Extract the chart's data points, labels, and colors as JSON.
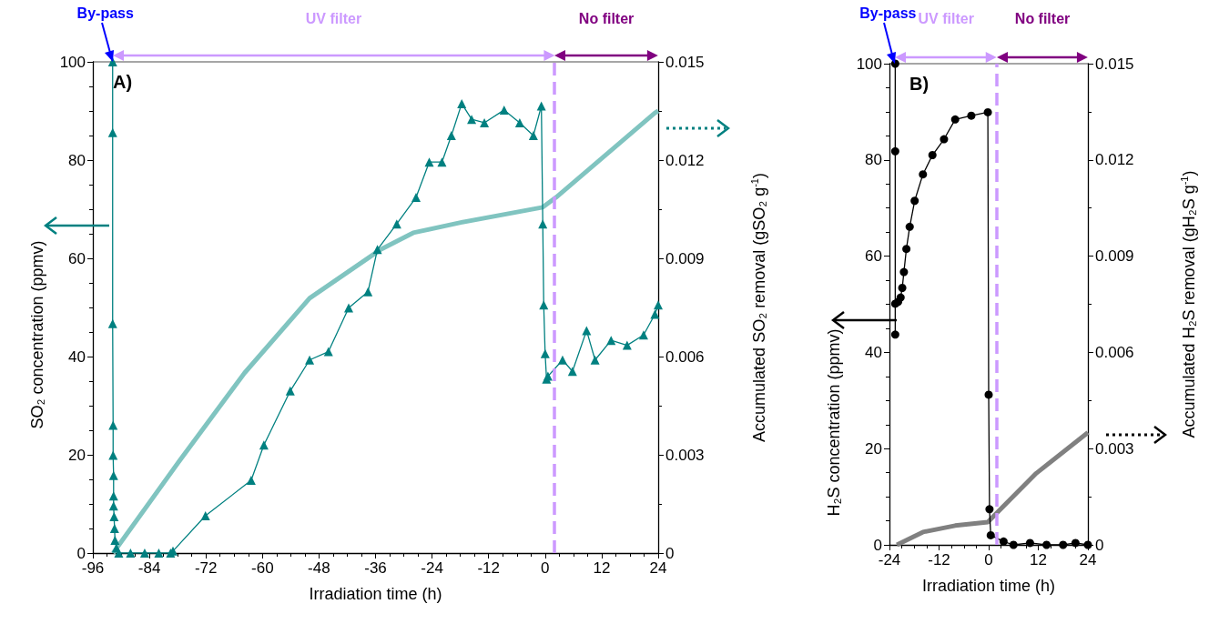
{
  "chart_data": [
    {
      "type": "line",
      "xlabel": "Irradiation time (h)",
      "ylabel": "SO₂ concentration (ppmv)",
      "y2label": "Accumulated SO₂ removal (gSO₂ g$^{-1}$)",
      "xlim": [
        -96,
        24
      ],
      "xticks": [
        -96,
        -84,
        -72,
        -60,
        -48,
        -36,
        -24,
        -12,
        0,
        12,
        24
      ],
      "ylim": [
        0,
        100
      ],
      "yticks": [
        0,
        20,
        40,
        60,
        80,
        100
      ],
      "y2lim": [
        0,
        0.015
      ],
      "y2ticks": [
        0,
        0.003,
        0.006,
        0.009,
        0.012,
        0.015
      ],
      "annotations": [
        "A)",
        "By-pass",
        "UV filter",
        "No filter"
      ],
      "ref_lines": [
        {
          "axis": "x",
          "value": 2,
          "color": "#cc99ff",
          "line_style": "dashed"
        }
      ],
      "series": [
        {
          "color": "#008080",
          "marker": "triangle",
          "x": [
            -91.8,
            -91.8,
            -91.8,
            -91.7,
            -91.7,
            -91.6,
            -91.6,
            -91.6,
            -91.5,
            -91.4,
            -91.3,
            -91,
            -90.5,
            -88,
            -85,
            -82,
            -79.5,
            -79,
            -72.1,
            -62.4,
            -59.7,
            -54.1,
            -50,
            -46,
            -41.7,
            -37.6,
            -35.6,
            -31.5,
            -27.4,
            -24.6,
            -21.9,
            -19.9,
            -17.7,
            -15.6,
            -12.9,
            -8.7,
            -5.4,
            -2.5,
            -0.8,
            -0.5,
            -0.3,
            0,
            0.3,
            0.6,
            3.7,
            5.8,
            8.8,
            10.6,
            14,
            17.4,
            20.9,
            23.3,
            24
          ],
          "values": [
            100,
            85.6,
            46.7,
            26,
            19.9,
            15.8,
            11.6,
            9.6,
            7.4,
            5,
            2.6,
            1,
            0,
            0,
            0,
            0,
            0,
            0.4,
            7.6,
            14.8,
            22,
            33,
            39.3,
            41,
            49.9,
            53.2,
            61.8,
            67,
            72.4,
            79.6,
            79.6,
            85,
            91.5,
            88.3,
            87.6,
            90.2,
            87.6,
            85,
            91,
            67,
            50.5,
            40.6,
            35.4,
            36,
            39.3,
            37,
            45.3,
            39.3,
            43.3,
            42.3,
            44.4,
            48.6,
            50.5
          ]
        },
        {
          "color": "#80c4c0",
          "axis": "y2",
          "marker": "none",
          "x": [
            -91.7,
            -77.6,
            -63.8,
            -50,
            -34.8,
            -28,
            -17.7,
            -0.5,
            2.3,
            23.3,
            24
          ],
          "values": [
            0,
            0.00282,
            0.0055,
            0.00778,
            0.00928,
            0.00978,
            0.0101,
            0.01056,
            0.01086,
            0.01344,
            0.0135
          ]
        }
      ]
    },
    {
      "type": "line",
      "xlabel": "Irradiation time (h)",
      "ylabel": "H₂S concentration (ppmv)",
      "y2label": "Accumulated H₂S removal (gH₂S g$^{-1}$)",
      "xlim": [
        -24,
        24
      ],
      "xticks": [
        -24,
        -12,
        0,
        12,
        24
      ],
      "ylim": [
        0,
        100
      ],
      "yticks": [
        0,
        20,
        40,
        60,
        80,
        100
      ],
      "y2lim": [
        0,
        0.015
      ],
      "y2ticks": [
        0,
        0.003,
        0.006,
        0.009,
        0.012,
        0.015
      ],
      "annotations": [
        "B)",
        "By-pass",
        "UV filter",
        "No filter"
      ],
      "ref_lines": [
        {
          "axis": "x",
          "value": 2,
          "color": "#cc99ff",
          "line_style": "dashed"
        }
      ],
      "series": [
        {
          "color": "#000000",
          "marker": "circle",
          "x": [
            -22.6,
            -22.6,
            -22.6,
            -22.6,
            -21.9,
            -21.3,
            -20.9,
            -20.5,
            -19.9,
            -19.1,
            -17.9,
            -15.9,
            -13.6,
            -10.8,
            -8.1,
            -4.2,
            -0.2,
            0,
            0.2,
            0.5,
            3.6,
            6,
            10,
            14,
            18,
            21,
            24
          ],
          "values": [
            100,
            81.8,
            43.7,
            50.1,
            50.5,
            51.4,
            53.4,
            56.7,
            61.5,
            66.1,
            71.5,
            77,
            81,
            84.3,
            88.4,
            89.2,
            89.9,
            31.2,
            7.4,
            2,
            0.7,
            0,
            0.4,
            0,
            0,
            0.4,
            0
          ]
        },
        {
          "color": "#808080",
          "axis": "y2",
          "marker": "none",
          "x": [
            -22.2,
            -15.9,
            -8.1,
            -0.2,
            1.4,
            11.5,
            24
          ],
          "values": [
            0,
            0.0004,
            0.0006,
            0.00071,
            0.00092,
            0.00223,
            0.0035
          ]
        }
      ]
    }
  ]
}
